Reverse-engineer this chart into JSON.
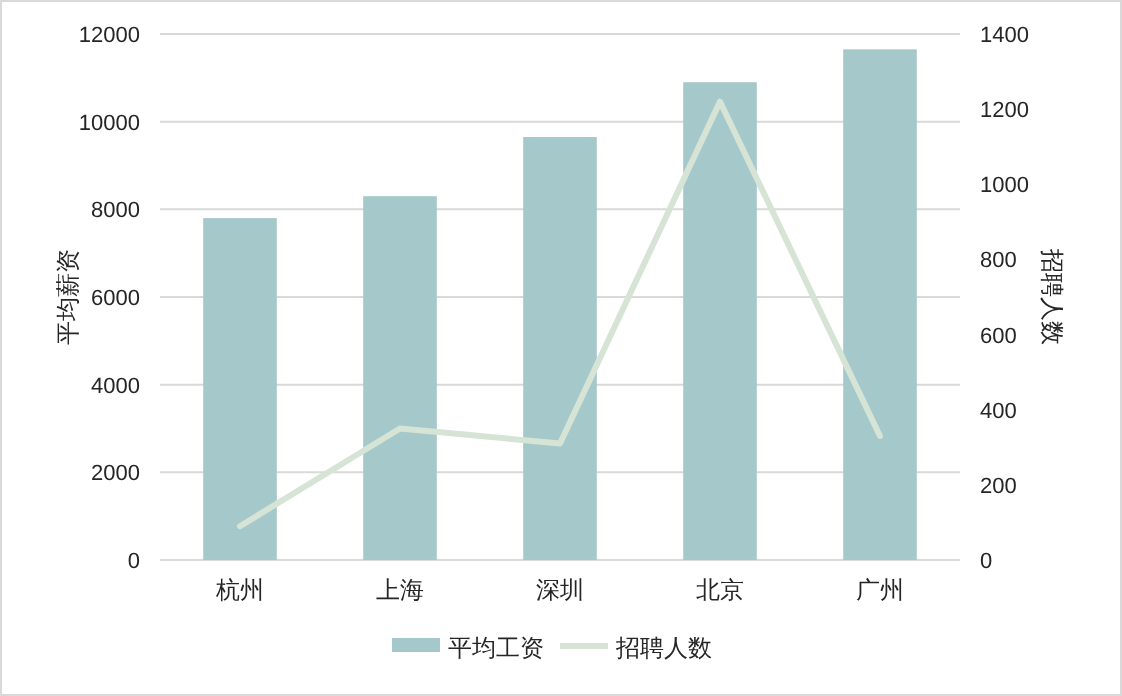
{
  "chart_data": {
    "type": "bar",
    "categories": [
      "杭州",
      "上海",
      "深圳",
      "北京",
      "广州"
    ],
    "series": [
      {
        "name": "平均工资",
        "color": "#a5c8cb",
        "values": [
          7800,
          8300,
          9650,
          10900,
          11650
        ]
      },
      {
        "name": "招聘人数",
        "type": "line",
        "axis": "y2",
        "color": "#d6e4d6",
        "values": [
          90,
          350,
          310,
          1220,
          330
        ]
      }
    ],
    "ylabel": "平均薪资",
    "y2label": "招聘人数",
    "ylim": [
      0,
      12000
    ],
    "yticks": [
      0,
      2000,
      4000,
      6000,
      8000,
      10000,
      12000
    ],
    "y2lim": [
      0,
      1400
    ],
    "y2ticks": [
      0,
      200,
      400,
      600,
      800,
      1000,
      1200,
      1400
    ],
    "grid": "y",
    "legend": "bottom",
    "marker": "none"
  }
}
